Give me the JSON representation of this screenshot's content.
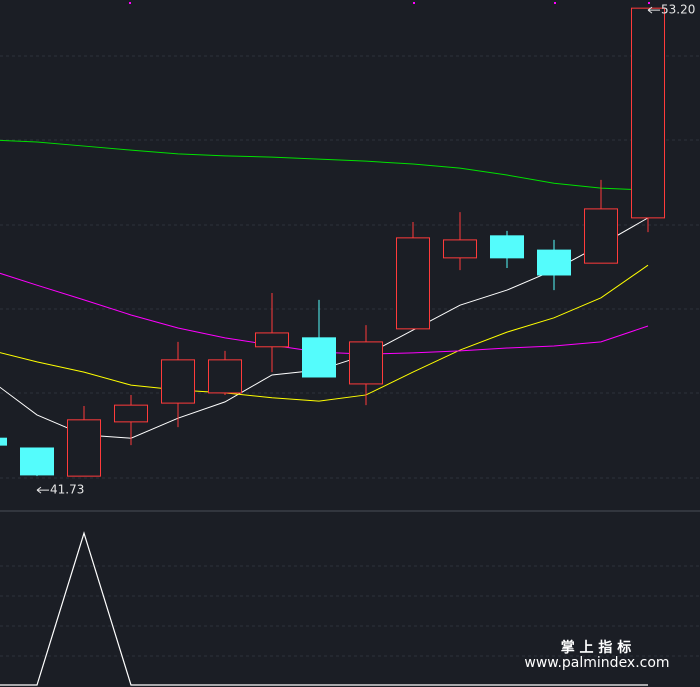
{
  "chart_data": [
    {
      "type": "candlestick",
      "candles": {
        "open": [
          42.66,
          42.42,
          41.73,
          43.06,
          43.52,
          43.77,
          44.9,
          45.12,
          43.99,
          45.34,
          47.08,
          47.62,
          47.27,
          46.95,
          48.06
        ],
        "high": [
          42.66,
          42.42,
          43.45,
          43.72,
          45.02,
          44.8,
          46.22,
          46.05,
          45.43,
          47.96,
          48.2,
          47.74,
          47.52,
          48.99,
          53.2
        ],
        "low": [
          42.49,
          41.73,
          41.73,
          42.49,
          42.93,
          43.72,
          44.28,
          44.16,
          43.47,
          45.34,
          46.78,
          46.83,
          46.29,
          46.95,
          47.71
        ],
        "close": [
          42.49,
          41.76,
          43.11,
          43.47,
          44.58,
          44.58,
          45.24,
          44.16,
          45.02,
          47.57,
          47.52,
          47.08,
          46.66,
          48.28,
          53.2
        ]
      },
      "up_color": "#ff3b3b",
      "down_color": "#54fcfc",
      "lines": [
        {
          "color": "#ffffff",
          "values": [
            44.09,
            43.23,
            42.74,
            42.66,
            43.15,
            43.55,
            44.21,
            44.33,
            44.7,
            45.31,
            45.92,
            46.29,
            46.78,
            47.4,
            48.06
          ]
        },
        {
          "color": "#ffff00",
          "values": [
            44.82,
            44.53,
            44.28,
            43.96,
            43.84,
            43.77,
            43.65,
            43.57,
            43.72,
            44.28,
            44.82,
            45.26,
            45.61,
            46.1,
            46.9
          ]
        },
        {
          "color": "#ff00ff",
          "values": [
            46.78,
            46.41,
            46.05,
            45.68,
            45.36,
            45.12,
            44.94,
            44.77,
            44.72,
            44.75,
            44.8,
            44.87,
            44.92,
            45.02,
            45.41
          ]
        },
        {
          "color": "#00e000",
          "values": [
            49.97,
            49.92,
            49.82,
            49.72,
            49.63,
            49.58,
            49.55,
            49.5,
            49.45,
            49.38,
            49.28,
            49.11,
            48.91,
            48.79,
            48.74
          ]
        }
      ],
      "ylim": [
        40.9,
        53.4
      ],
      "annotations": [
        {
          "value": 53.2,
          "label": "53.20"
        },
        {
          "value": 41.73,
          "label": "41.73"
        }
      ]
    },
    {
      "type": "line",
      "color": "#ffffff",
      "values": [
        0,
        0,
        1,
        0,
        0,
        0,
        0,
        0,
        0,
        0,
        0,
        0,
        0,
        0,
        0
      ],
      "ylim": [
        0,
        1.1
      ]
    }
  ],
  "watermark": [
    "掌 上 指 标",
    "www.palmindex.com"
  ]
}
